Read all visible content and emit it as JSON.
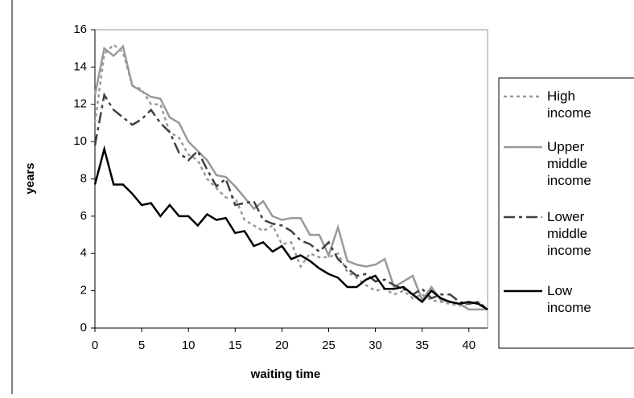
{
  "chart_data": {
    "type": "line",
    "x_label": "waiting time",
    "y_label": "years",
    "x": [
      0,
      1,
      2,
      3,
      4,
      5,
      6,
      7,
      8,
      9,
      10,
      11,
      12,
      13,
      14,
      15,
      16,
      17,
      18,
      19,
      20,
      21,
      22,
      23,
      24,
      25,
      26,
      27,
      28,
      29,
      30,
      31,
      32,
      33,
      34,
      35,
      36,
      37,
      38,
      39,
      40,
      41,
      42
    ],
    "xlim": [
      0,
      42
    ],
    "xticks": [
      0,
      5,
      10,
      15,
      20,
      25,
      30,
      35,
      40
    ],
    "ylim": [
      0,
      16
    ],
    "yticks": [
      0,
      2,
      4,
      6,
      8,
      10,
      12,
      14,
      16
    ],
    "legend": "right",
    "series": [
      {
        "name": "High income",
        "color": "#999999",
        "dash": "4,4",
        "values": [
          11.0,
          14.7,
          15.2,
          14.8,
          13.0,
          12.8,
          12.0,
          12.0,
          10.5,
          10.2,
          9.3,
          9.0,
          8.0,
          7.5,
          7.0,
          7.0,
          5.8,
          5.5,
          5.2,
          5.5,
          4.5,
          4.6,
          3.3,
          4.0,
          3.8,
          3.8,
          4.0,
          3.0,
          2.7,
          2.3,
          2.0,
          2.1,
          1.8,
          2.0,
          1.6,
          1.8,
          1.5,
          1.4,
          1.3,
          1.2,
          1.3,
          1.4,
          1.0
        ]
      },
      {
        "name": "Upper middle income",
        "color": "#999999",
        "dash": "none",
        "values": [
          12.5,
          15.0,
          14.6,
          15.1,
          13.0,
          12.7,
          12.4,
          12.3,
          11.3,
          11.0,
          10.0,
          9.5,
          9.0,
          8.2,
          8.1,
          7.6,
          7.0,
          6.4,
          6.8,
          6.0,
          5.8,
          5.9,
          5.9,
          5.0,
          5.0,
          3.9,
          5.4,
          3.6,
          3.4,
          3.3,
          3.4,
          3.7,
          2.2,
          2.5,
          2.8,
          1.5,
          2.2,
          1.5,
          1.4,
          1.3,
          1.0,
          1.0,
          1.0
        ]
      },
      {
        "name": "Lower middle income",
        "color": "#404040",
        "dash": "14,5,4,5",
        "values": [
          9.8,
          12.5,
          11.7,
          11.3,
          10.9,
          11.2,
          11.7,
          11.0,
          10.5,
          9.4,
          9.0,
          9.5,
          8.5,
          7.6,
          8.0,
          6.6,
          6.7,
          6.8,
          5.8,
          5.6,
          5.5,
          5.2,
          4.7,
          4.5,
          4.1,
          4.6,
          3.7,
          3.2,
          2.8,
          2.9,
          2.5,
          2.6,
          2.3,
          2.1,
          1.8,
          2.1,
          1.6,
          1.8,
          1.8,
          1.4,
          1.3,
          1.4,
          1.0
        ]
      },
      {
        "name": "Low income",
        "color": "#000000",
        "dash": "none",
        "values": [
          7.7,
          9.6,
          7.7,
          7.7,
          7.2,
          6.6,
          6.7,
          6.0,
          6.6,
          6.0,
          6.0,
          5.5,
          6.1,
          5.8,
          5.9,
          5.1,
          5.2,
          4.4,
          4.6,
          4.1,
          4.4,
          3.7,
          3.9,
          3.6,
          3.2,
          2.9,
          2.7,
          2.2,
          2.2,
          2.6,
          2.8,
          2.1,
          2.1,
          2.2,
          1.8,
          1.4,
          2.0,
          1.6,
          1.4,
          1.3,
          1.4,
          1.3,
          1.0
        ]
      }
    ]
  }
}
